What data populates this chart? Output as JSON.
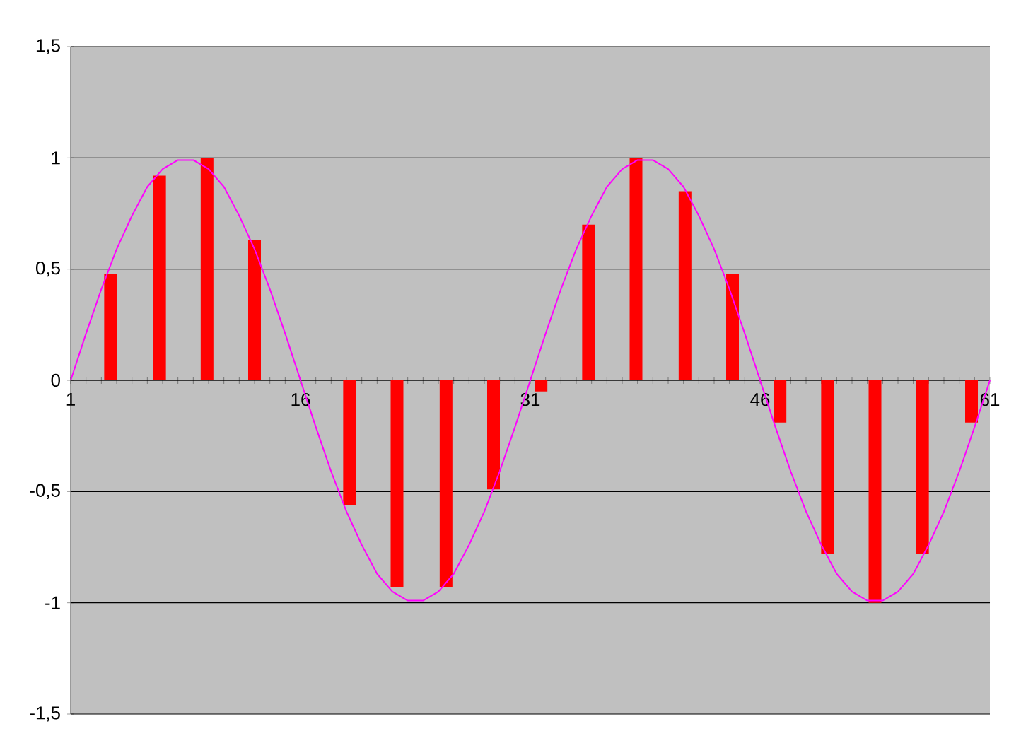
{
  "chart_data": {
    "type": "line",
    "xlim": [
      1,
      61
    ],
    "ylim": [
      -1.5,
      1.5
    ],
    "grid": "y",
    "xticks": [
      1,
      {
        "value": 2,
        "label": null
      },
      {
        "value": 3,
        "label": null
      },
      {
        "value": 4,
        "label": null
      },
      {
        "value": 5,
        "label": null
      },
      {
        "value": 6,
        "label": null
      },
      {
        "value": 7,
        "label": null
      },
      {
        "value": 8,
        "label": null
      },
      {
        "value": 9,
        "label": null
      },
      {
        "value": 10,
        "label": null
      },
      {
        "value": 11,
        "label": null
      },
      {
        "value": 12,
        "label": null
      },
      {
        "value": 13,
        "label": null
      },
      {
        "value": 14,
        "label": null
      },
      {
        "value": 15,
        "label": null
      },
      16,
      {
        "value": 17,
        "label": null
      },
      {
        "value": 18,
        "label": null
      },
      {
        "value": 19,
        "label": null
      },
      {
        "value": 20,
        "label": null
      },
      {
        "value": 21,
        "label": null
      },
      {
        "value": 22,
        "label": null
      },
      {
        "value": 23,
        "label": null
      },
      {
        "value": 24,
        "label": null
      },
      {
        "value": 25,
        "label": null
      },
      {
        "value": 26,
        "label": null
      },
      {
        "value": 27,
        "label": null
      },
      {
        "value": 28,
        "label": null
      },
      {
        "value": 29,
        "label": null
      },
      {
        "value": 30,
        "label": null
      },
      31,
      {
        "value": 32,
        "label": null
      },
      {
        "value": 33,
        "label": null
      },
      {
        "value": 34,
        "label": null
      },
      {
        "value": 35,
        "label": null
      },
      {
        "value": 36,
        "label": null
      },
      {
        "value": 37,
        "label": null
      },
      {
        "value": 38,
        "label": null
      },
      {
        "value": 39,
        "label": null
      },
      {
        "value": 40,
        "label": null
      },
      {
        "value": 41,
        "label": null
      },
      {
        "value": 42,
        "label": null
      },
      {
        "value": 43,
        "label": null
      },
      {
        "value": 44,
        "label": null
      },
      {
        "value": 45,
        "label": null
      },
      46,
      {
        "value": 47,
        "label": null
      },
      {
        "value": 48,
        "label": null
      },
      {
        "value": 49,
        "label": null
      },
      {
        "value": 50,
        "label": null
      },
      {
        "value": 51,
        "label": null
      },
      {
        "value": 52,
        "label": null
      },
      {
        "value": 53,
        "label": null
      },
      {
        "value": 54,
        "label": null
      },
      {
        "value": 55,
        "label": null
      },
      {
        "value": 56,
        "label": null
      },
      {
        "value": 57,
        "label": null
      },
      {
        "value": 58,
        "label": null
      },
      {
        "value": 59,
        "label": null
      },
      {
        "value": 60,
        "label": null
      },
      61
    ],
    "yticks": [
      {
        "value": -1.5,
        "label": "-1,5"
      },
      -1,
      {
        "value": -0.5,
        "label": "-0,5"
      },
      0,
      {
        "value": 0.5,
        "label": "0,5"
      },
      1,
      {
        "value": 1.5,
        "label": "1,5"
      }
    ],
    "series": [
      {
        "type": "bar",
        "color": "#ff0000",
        "x": [
          3.6,
          6.8,
          9.9,
          13.0,
          16.1,
          19.2,
          22.3,
          25.5,
          28.6,
          31.7,
          34.8,
          37.9,
          41.1,
          44.2,
          47.3,
          50.4,
          53.5,
          56.6,
          59.8
        ],
        "values": [
          0.48,
          0.92,
          1.0,
          0.63,
          0.0,
          -0.56,
          -0.93,
          -0.93,
          -0.49,
          -0.05,
          0.7,
          1.0,
          0.85,
          0.48,
          -0.19,
          -0.78,
          -1.0,
          -0.78,
          -0.19
        ]
      },
      {
        "color": "#ff00ff",
        "x": [
          1,
          2,
          3,
          4,
          5,
          6,
          7,
          8,
          9,
          10,
          11,
          12,
          13,
          14,
          15,
          16,
          17,
          18,
          19,
          20,
          21,
          22,
          23,
          24,
          25,
          26,
          27,
          28,
          29,
          30,
          31,
          32,
          33,
          34,
          35,
          36,
          37,
          38,
          39,
          40,
          41,
          42,
          43,
          44,
          45,
          46,
          47,
          48,
          49,
          50,
          51,
          52,
          53,
          54,
          55,
          56,
          57,
          58,
          59,
          60,
          61
        ],
        "values": [
          0,
          0.21,
          0.41,
          0.59,
          0.74,
          0.87,
          0.95,
          0.99,
          0.99,
          0.95,
          0.87,
          0.74,
          0.59,
          0.41,
          0.21,
          0,
          -0.21,
          -0.41,
          -0.59,
          -0.74,
          -0.87,
          -0.95,
          -0.99,
          -0.99,
          -0.95,
          -0.87,
          -0.74,
          -0.59,
          -0.41,
          -0.21,
          0,
          0.21,
          0.41,
          0.59,
          0.74,
          0.87,
          0.95,
          0.99,
          0.99,
          0.95,
          0.87,
          0.74,
          0.59,
          0.41,
          0.21,
          0,
          -0.21,
          -0.41,
          -0.59,
          -0.74,
          -0.87,
          -0.95,
          -0.99,
          -0.99,
          -0.95,
          -0.87,
          -0.74,
          -0.59,
          -0.41,
          -0.21,
          0
        ]
      }
    ]
  }
}
